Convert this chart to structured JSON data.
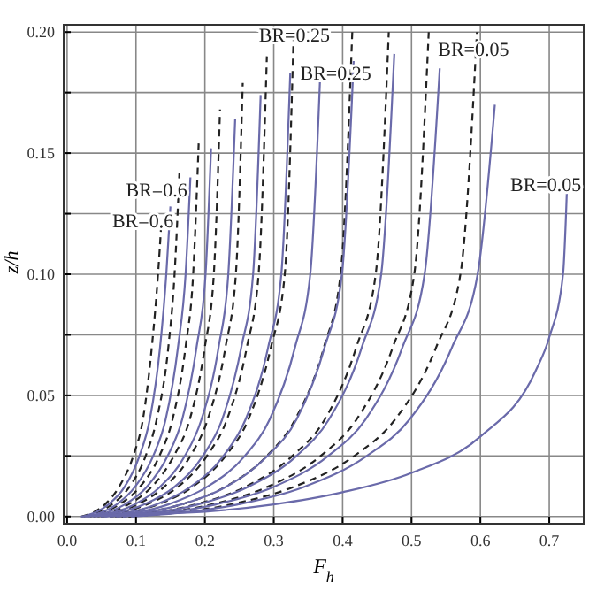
{
  "chart_data": {
    "type": "line",
    "xlabel": "F$_{h}$",
    "ylabel": "z/h",
    "xlim": [
      -0.005,
      0.75
    ],
    "ylim": [
      -0.003,
      0.203
    ],
    "xticks": [
      {
        "value": 0,
        "label": "0.0"
      },
      {
        "value": 0.1,
        "label": "0.1"
      },
      {
        "value": 0.2,
        "label": "0.2"
      },
      {
        "value": 0.3,
        "label": "0.3"
      },
      {
        "value": 0.4,
        "label": "0.4"
      },
      {
        "value": 0.5,
        "label": "0.5"
      },
      {
        "value": 0.6,
        "label": "0.6"
      },
      {
        "value": 0.7,
        "label": "0.7"
      }
    ],
    "yticks": [
      {
        "value": 0,
        "label": "0.00"
      },
      {
        "value": 0.025,
        "label": null
      },
      {
        "value": 0.05,
        "label": "0.05"
      },
      {
        "value": 0.075,
        "label": null
      },
      {
        "value": 0.1,
        "label": "0.10"
      },
      {
        "value": 0.125,
        "label": null
      },
      {
        "value": 0.15,
        "label": "0.15"
      },
      {
        "value": 0.175,
        "label": null
      },
      {
        "value": 0.2,
        "label": "0.20"
      }
    ],
    "grid": true,
    "marker": "none",
    "annotations": [
      "BR=0.6",
      "BR=0.6",
      "BR=0.25",
      "BR=0.25",
      "BR=0.05",
      "BR=0.05"
    ],
    "series": [
      {
        "color": "#222222",
        "line_style": "dashed",
        "x": [
          0.021,
          0.055,
          0.075,
          0.096,
          0.11,
          0.123,
          0.132,
          0.137
        ],
        "values": [
          0,
          0.005,
          0.012,
          0.025,
          0.04,
          0.07,
          0.1,
          0.122
        ]
      },
      {
        "color": "#222222",
        "line_style": "dashed",
        "x": [
          0.024,
          0.065,
          0.09,
          0.114,
          0.13,
          0.147,
          0.156,
          0.163
        ],
        "values": [
          0,
          0.005,
          0.012,
          0.025,
          0.04,
          0.07,
          0.1,
          0.142
        ]
      },
      {
        "color": "#222222",
        "line_style": "dashed",
        "x": [
          0.029,
          0.076,
          0.105,
          0.134,
          0.153,
          0.172,
          0.183,
          0.191
        ],
        "values": [
          0,
          0.005,
          0.012,
          0.025,
          0.04,
          0.07,
          0.1,
          0.154
        ]
      },
      {
        "color": "#222222",
        "line_style": "dashed",
        "x": [
          0.033,
          0.089,
          0.122,
          0.155,
          0.178,
          0.2,
          0.213,
          0.222
        ],
        "values": [
          0,
          0.005,
          0.012,
          0.025,
          0.04,
          0.07,
          0.1,
          0.168
        ]
      },
      {
        "color": "#222222",
        "line_style": "dashed",
        "x": [
          0.038,
          0.102,
          0.14,
          0.179,
          0.204,
          0.23,
          0.245,
          0.255
        ],
        "values": [
          0,
          0.005,
          0.012,
          0.025,
          0.04,
          0.07,
          0.1,
          0.179
        ]
      },
      {
        "color": "#222222",
        "line_style": "dashed",
        "x": [
          0.044,
          0.116,
          0.16,
          0.203,
          0.232,
          0.261,
          0.278,
          0.29
        ],
        "values": [
          0,
          0.005,
          0.012,
          0.025,
          0.04,
          0.07,
          0.1,
          0.19
        ]
      },
      {
        "color": "#222222",
        "line_style": "dashed",
        "x": [
          0.049,
          0.132,
          0.181,
          0.23,
          0.263,
          0.296,
          0.316,
          0.329
        ],
        "values": [
          0,
          0.005,
          0.012,
          0.025,
          0.04,
          0.07,
          0.1,
          0.2
        ]
      },
      {
        "color": "#222222",
        "line_style": "dashed",
        "x": [
          0.062,
          0.166,
          0.228,
          0.29,
          0.331,
          0.373,
          0.397,
          0.414
        ],
        "values": [
          0,
          0.005,
          0.012,
          0.025,
          0.04,
          0.07,
          0.1,
          0.2
        ]
      },
      {
        "color": "#222222",
        "line_style": "dashed",
        "x": [
          0.07,
          0.187,
          0.257,
          0.327,
          0.374,
          0.42,
          0.448,
          0.467
        ],
        "values": [
          0,
          0.005,
          0.012,
          0.025,
          0.04,
          0.07,
          0.1,
          0.2
        ]
      },
      {
        "color": "#222222",
        "line_style": "dashed",
        "x": [
          0.079,
          0.21,
          0.289,
          0.368,
          0.42,
          0.473,
          0.504,
          0.525
        ],
        "values": [
          0,
          0.005,
          0.012,
          0.025,
          0.04,
          0.07,
          0.1,
          0.2
        ]
      },
      {
        "color": "#222222",
        "line_style": "dashed",
        "x": [
          0.089,
          0.238,
          0.327,
          0.417,
          0.476,
          0.536,
          0.571,
          0.595
        ],
        "values": [
          0,
          0.005,
          0.012,
          0.025,
          0.04,
          0.07,
          0.1,
          0.2
        ]
      },
      {
        "color": "#6a6aaa",
        "line_style": "solid",
        "x": [
          0.023,
          0.06,
          0.083,
          0.105,
          0.12,
          0.135,
          0.144,
          0.15
        ],
        "values": [
          0,
          0.005,
          0.012,
          0.025,
          0.04,
          0.07,
          0.1,
          0.128
        ]
      },
      {
        "color": "#6a6aaa",
        "line_style": "solid",
        "x": [
          0.027,
          0.072,
          0.098,
          0.125,
          0.143,
          0.161,
          0.172,
          0.179
        ],
        "values": [
          0,
          0.005,
          0.012,
          0.025,
          0.04,
          0.07,
          0.1,
          0.14
        ]
      },
      {
        "color": "#6a6aaa",
        "line_style": "solid",
        "x": [
          0.031,
          0.084,
          0.115,
          0.146,
          0.167,
          0.188,
          0.201,
          0.209
        ],
        "values": [
          0,
          0.005,
          0.012,
          0.025,
          0.04,
          0.07,
          0.1,
          0.152
        ]
      },
      {
        "color": "#6a6aaa",
        "line_style": "solid",
        "x": [
          0.037,
          0.098,
          0.134,
          0.171,
          0.195,
          0.22,
          0.234,
          0.244
        ],
        "values": [
          0,
          0.005,
          0.012,
          0.025,
          0.04,
          0.07,
          0.1,
          0.164
        ]
      },
      {
        "color": "#6a6aaa",
        "line_style": "solid",
        "x": [
          0.042,
          0.112,
          0.155,
          0.197,
          0.225,
          0.253,
          0.27,
          0.281
        ],
        "values": [
          0,
          0.005,
          0.012,
          0.025,
          0.04,
          0.07,
          0.1,
          0.174
        ]
      },
      {
        "color": "#6a6aaa",
        "line_style": "solid",
        "x": [
          0.049,
          0.13,
          0.178,
          0.227,
          0.259,
          0.292,
          0.311,
          0.324
        ],
        "values": [
          0,
          0.005,
          0.012,
          0.025,
          0.04,
          0.07,
          0.1,
          0.183
        ]
      },
      {
        "color": "#6a6aaa",
        "line_style": "solid",
        "x": [
          0.055,
          0.147,
          0.202,
          0.258,
          0.294,
          0.331,
          0.353,
          0.368
        ],
        "values": [
          0,
          0.005,
          0.012,
          0.025,
          0.04,
          0.07,
          0.1,
          0.186
        ]
      },
      {
        "color": "#6a6aaa",
        "line_style": "solid",
        "x": [
          0.062,
          0.166,
          0.229,
          0.291,
          0.333,
          0.374,
          0.399,
          0.416
        ],
        "values": [
          0,
          0.005,
          0.012,
          0.025,
          0.04,
          0.07,
          0.1,
          0.188
        ]
      },
      {
        "color": "#6a6aaa",
        "line_style": "solid",
        "x": [
          0.071,
          0.19,
          0.261,
          0.333,
          0.38,
          0.428,
          0.456,
          0.475
        ],
        "values": [
          0,
          0.005,
          0.012,
          0.025,
          0.04,
          0.07,
          0.1,
          0.191
        ]
      },
      {
        "color": "#6a6aaa",
        "line_style": "solid",
        "x": [
          0.081,
          0.216,
          0.298,
          0.379,
          0.433,
          0.487,
          0.519,
          0.541
        ],
        "values": [
          0,
          0.005,
          0.012,
          0.025,
          0.04,
          0.07,
          0.1,
          0.185
        ]
      },
      {
        "color": "#6a6aaa",
        "line_style": "solid",
        "x": [
          0.093,
          0.248,
          0.342,
          0.435,
          0.497,
          0.559,
          0.596,
          0.621
        ],
        "values": [
          0,
          0.005,
          0.012,
          0.025,
          0.04,
          0.07,
          0.1,
          0.17
        ]
      },
      {
        "color": "#6a6aaa",
        "line_style": "solid",
        "x": [
          0.02,
          0.1,
          0.2,
          0.3,
          0.4,
          0.5,
          0.6,
          0.68,
          0.7,
          0.72,
          0.726
        ],
        "values": [
          0,
          0.001,
          0.002,
          0.005,
          0.01,
          0.018,
          0.033,
          0.06,
          0.074,
          0.1,
          0.138
        ]
      }
    ]
  }
}
